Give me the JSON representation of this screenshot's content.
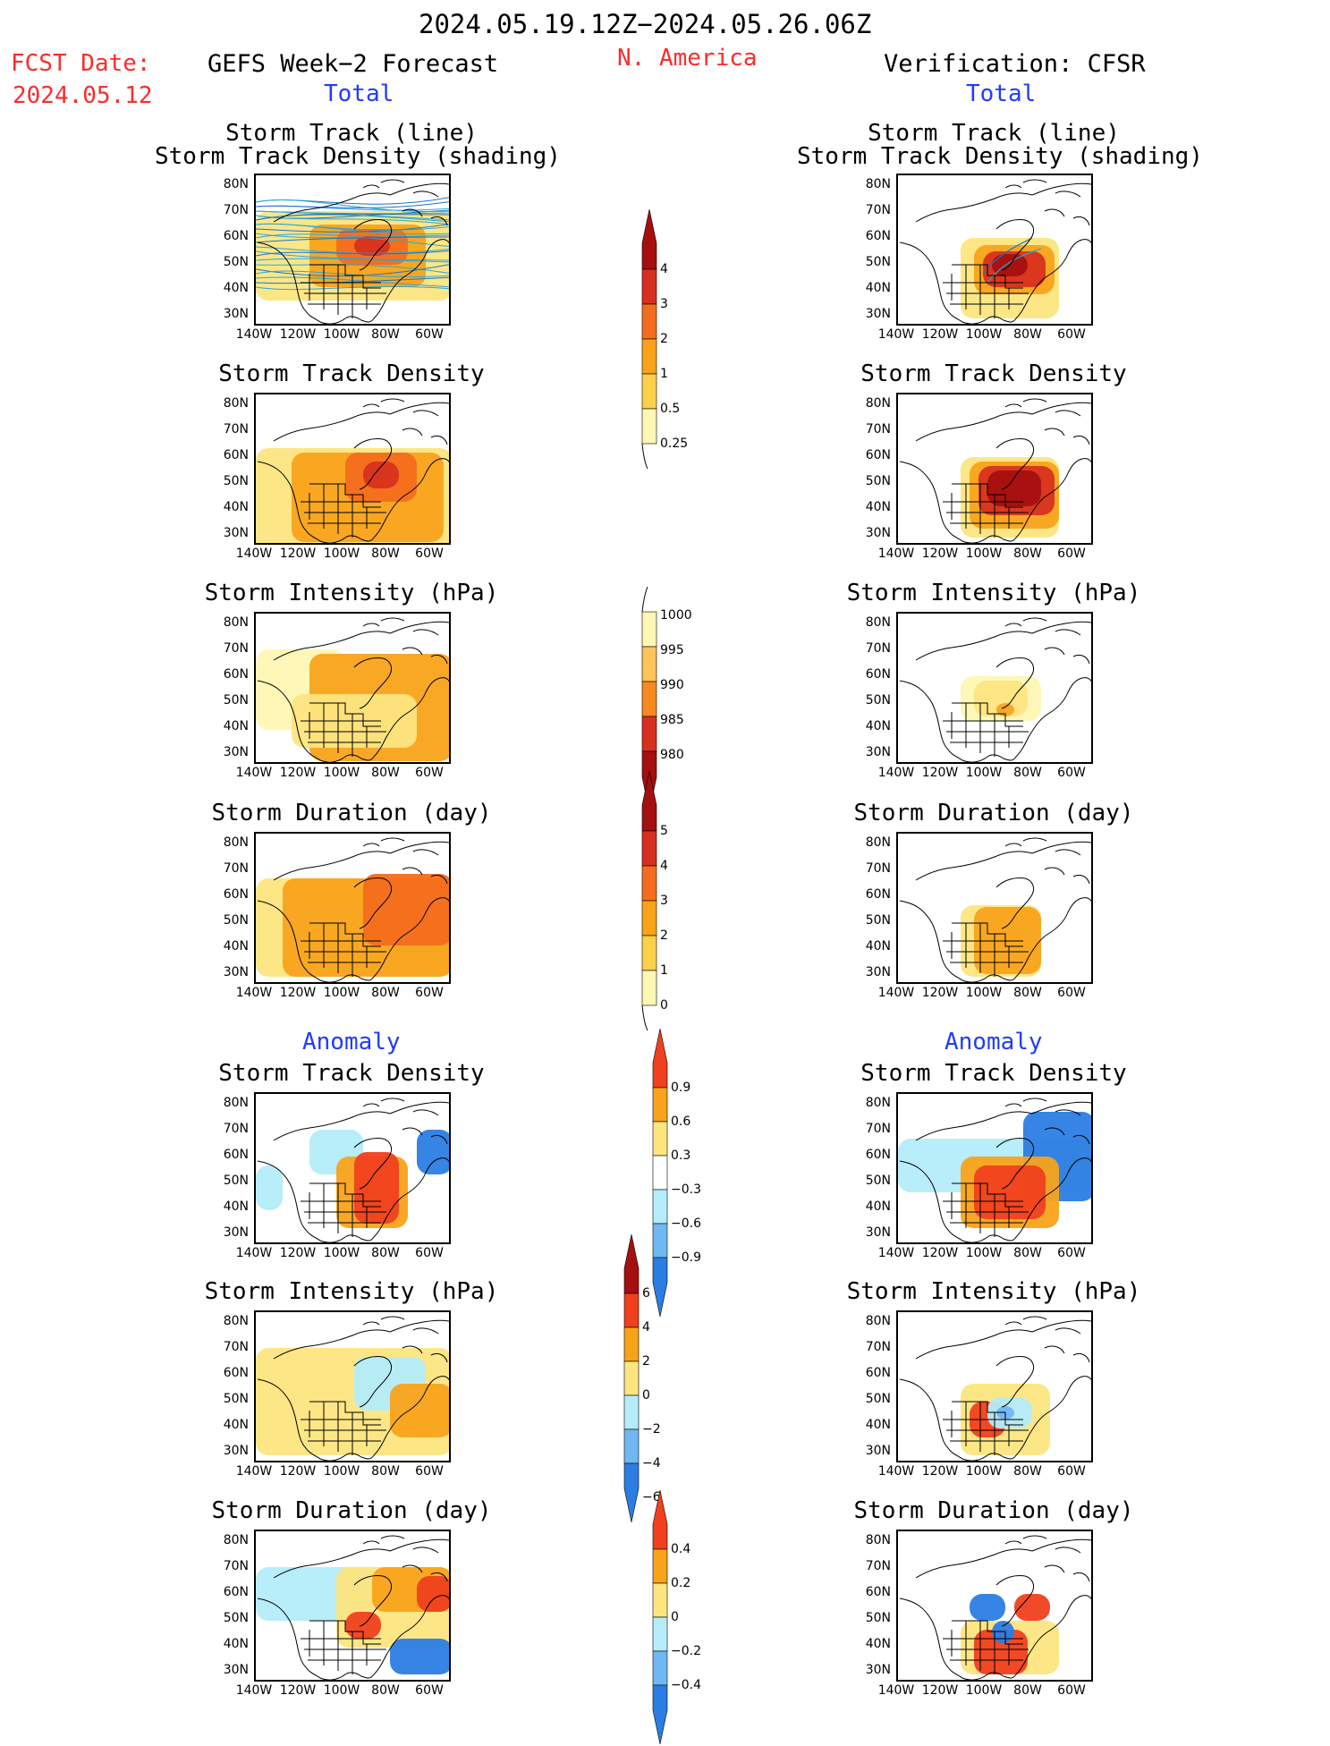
{
  "header": {
    "date_range": "2024.05.19.12Z−2024.05.26.06Z",
    "fcst_label": "FCST Date:",
    "fcst_date": "2024.05.12",
    "model_title": "GEFS Week−2 Forecast",
    "region": "N. America",
    "verification": "Verification: CFSR",
    "total_left": "Total",
    "total_right": "Total",
    "anomaly_left": "Anomaly",
    "anomaly_right": "Anomaly"
  },
  "axes": {
    "lat_ticks": [
      "80N",
      "70N",
      "60N",
      "50N",
      "40N",
      "30N"
    ],
    "lon_ticks": [
      "140W",
      "120W",
      "100W",
      "80W",
      "60W"
    ]
  },
  "panels": {
    "left": [
      {
        "title1": "Storm Track (line)",
        "title2": "Storm Track Density (shading)",
        "kind": "tracks"
      },
      {
        "title1": "Storm Track Density",
        "kind": "density_left"
      },
      {
        "title1": "Storm Intensity (hPa)",
        "kind": "intensity_left"
      },
      {
        "title1": "Storm Duration (day)",
        "kind": "duration_left"
      },
      {
        "title1": "Storm Track Density",
        "kind": "anom_density_left"
      },
      {
        "title1": "Storm Intensity (hPa)",
        "kind": "anom_intensity_left"
      },
      {
        "title1": "Storm Duration (day)",
        "kind": "anom_duration_left"
      }
    ],
    "right": [
      {
        "title1": "Storm Track (line)",
        "title2": "Storm Track Density (shading)",
        "kind": "tracks_right"
      },
      {
        "title1": "Storm Track Density",
        "kind": "density_right"
      },
      {
        "title1": "Storm Intensity (hPa)",
        "kind": "intensity_right"
      },
      {
        "title1": "Storm Duration (day)",
        "kind": "duration_right"
      },
      {
        "title1": "Storm Track Density",
        "kind": "anom_density_right"
      },
      {
        "title1": "Storm Intensity (hPa)",
        "kind": "anom_intensity_right"
      },
      {
        "title1": "Storm Duration (day)",
        "kind": "anom_duration_right"
      }
    ]
  },
  "colorbars": {
    "density": {
      "labels": [
        "4",
        "3",
        "2",
        "1",
        "0.5",
        "0.25"
      ],
      "colors": [
        "#a50f0f",
        "#d7301f",
        "#f46d1e",
        "#f9a31a",
        "#fcd04a",
        "#fff7b3"
      ]
    },
    "intensity": {
      "labels": [
        "1000",
        "995",
        "990",
        "985",
        "980"
      ],
      "colors": [
        "#fff7b3",
        "#fcc45a",
        "#f68a1f",
        "#d7301f",
        "#a50f0f"
      ]
    },
    "duration": {
      "labels": [
        "5",
        "4",
        "3",
        "2",
        "1",
        "0"
      ],
      "colors": [
        "#a50f0f",
        "#d7301f",
        "#f46d1e",
        "#f9a31a",
        "#fcd04a",
        "#fff7b3"
      ]
    },
    "anom_density": {
      "labels": [
        "0.9",
        "0.6",
        "0.3",
        "−0.3",
        "−0.6",
        "−0.9"
      ],
      "colors": [
        "#f0401e",
        "#f9a31a",
        "#fde580",
        "#ffffff",
        "#b4ecfa",
        "#6fb8f2",
        "#2b7de3"
      ]
    },
    "anom_intensity": {
      "labels": [
        "6",
        "4",
        "2",
        "0",
        "−2",
        "−4",
        "−6"
      ],
      "colors": [
        "#a50f0f",
        "#f0401e",
        "#f9a31a",
        "#fde580",
        "#b4ecfa",
        "#6fb8f2",
        "#2b7de3"
      ]
    },
    "anom_duration": {
      "labels": [
        "0.4",
        "0.2",
        "0",
        "−0.2",
        "−0.4"
      ],
      "colors": [
        "#f0401e",
        "#f9a31a",
        "#fde580",
        "#b4ecfa",
        "#6fb8f2",
        "#2b7de3"
      ]
    }
  }
}
